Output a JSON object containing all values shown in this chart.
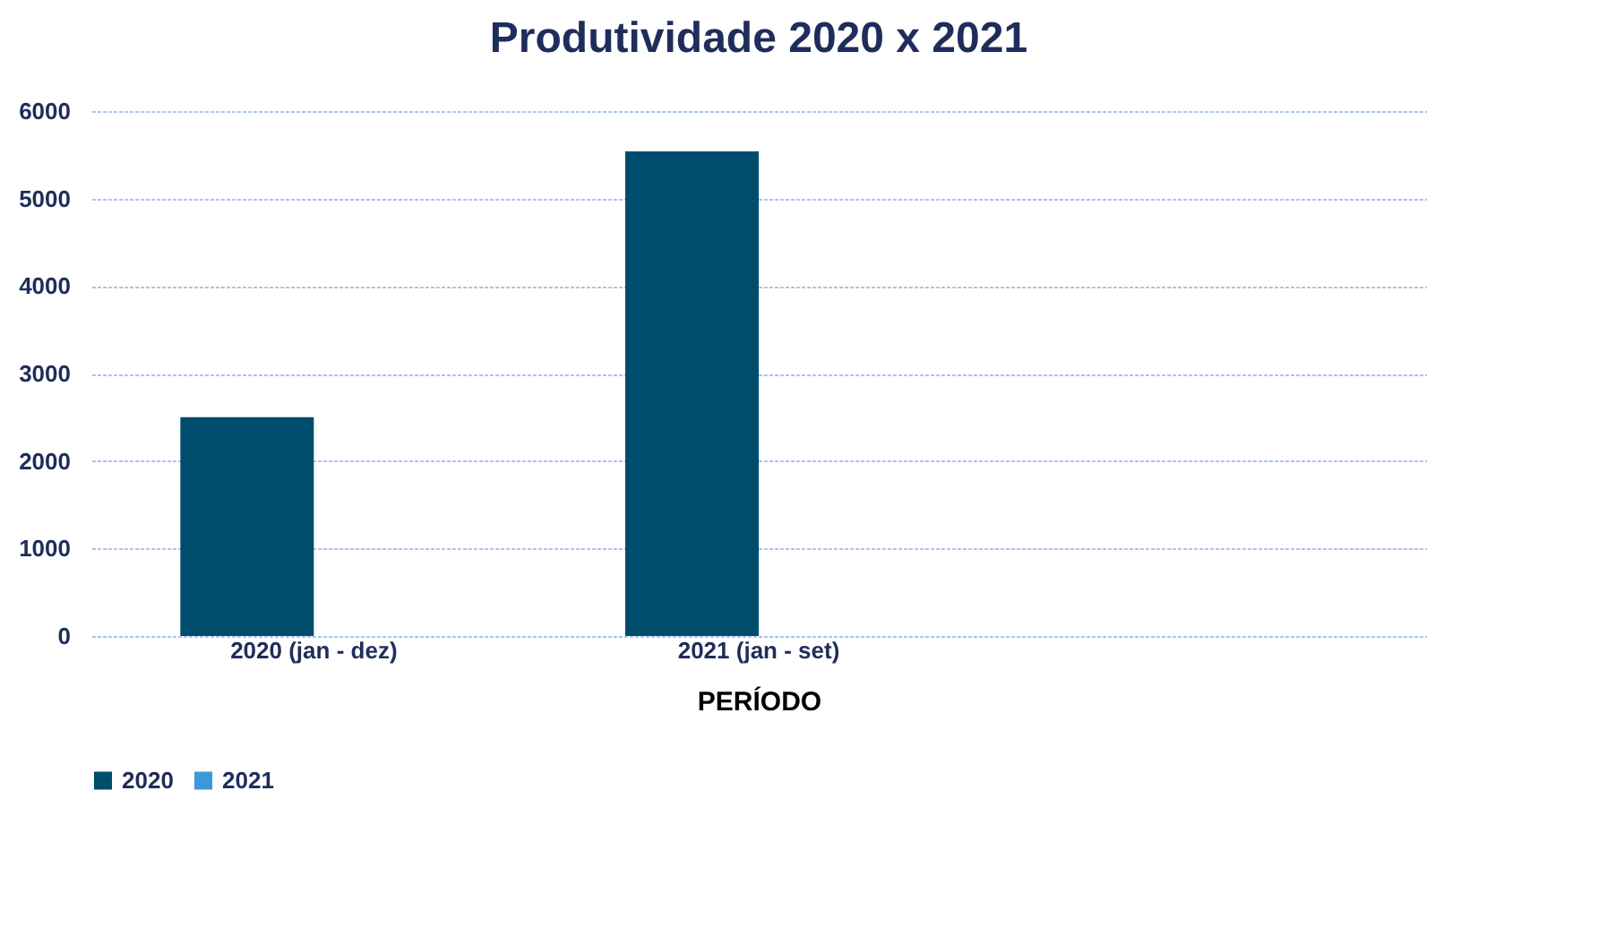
{
  "chart_data": {
    "type": "bar",
    "title": "Produtividade 2020 x 2021",
    "xlabel": "PERÍODO",
    "categories": [
      "2020 (jan - dez)",
      "2021 (jan - set)",
      null
    ],
    "series": [
      {
        "name": "2020",
        "color": "#004c6d",
        "values": [
          2500,
          5540,
          null
        ]
      },
      {
        "name": "2021",
        "color": "#3a9ad9",
        "values": [
          null,
          null,
          null
        ]
      }
    ],
    "ylim": [
      0,
      6000
    ],
    "yticks": [
      0,
      1000,
      2000,
      3000,
      4000,
      5000,
      6000
    ],
    "grid": "y",
    "legend": "bottom"
  }
}
